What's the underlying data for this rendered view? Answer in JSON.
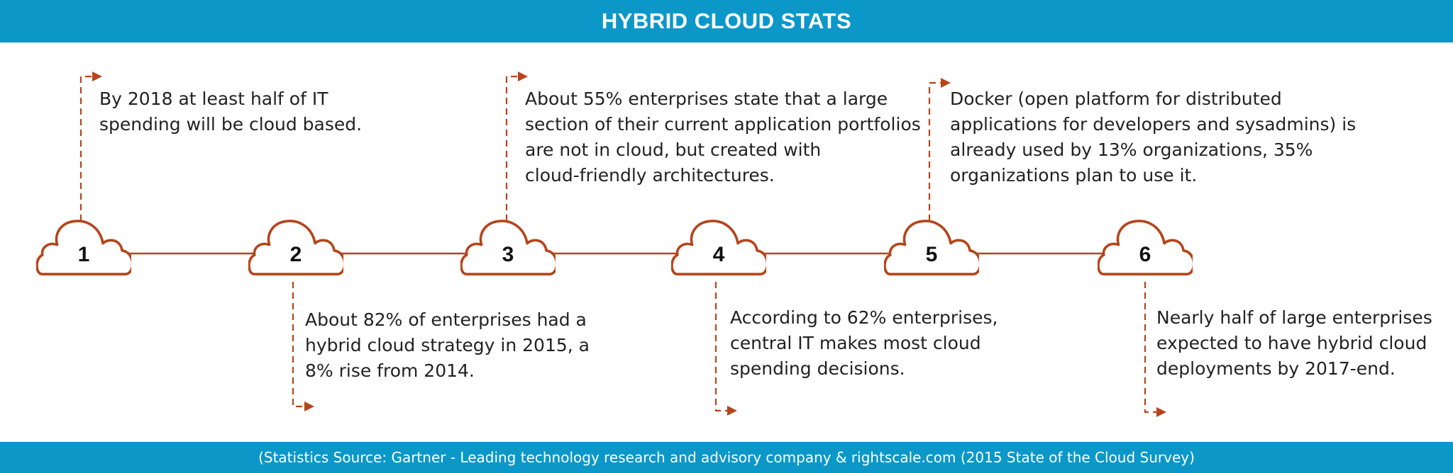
{
  "header": {
    "title": "HYBRID CLOUD STATS"
  },
  "footer": {
    "source": "(Statistics Source: Gartner - Leading technology research and advisory company & rightscale.com (2015 State of the Cloud Survey)"
  },
  "colors": {
    "banner": "#0c97c9",
    "accent": "#b5451b"
  },
  "steps": [
    {
      "number": "1",
      "lines": [
        "By 2018 at least half of IT",
        "spending will be cloud based."
      ]
    },
    {
      "number": "2",
      "lines": [
        "About 82% of enterprises had a",
        "hybrid cloud strategy in 2015, a",
        "8% rise from 2014."
      ]
    },
    {
      "number": "3",
      "lines": [
        "About 55% enterprises state that a large",
        "section of their current application portfolios",
        "are not in cloud, but created with",
        "cloud-friendly architectures."
      ]
    },
    {
      "number": "4",
      "lines": [
        "According to 62% enterprises,",
        "central IT makes most cloud",
        "spending decisions."
      ]
    },
    {
      "number": "5",
      "lines": [
        "Docker (open platform for distributed",
        "applications for developers and sysadmins) is",
        "already used by 13% organizations, 35%",
        "organizations plan to use it."
      ]
    },
    {
      "number": "6",
      "lines": [
        "Nearly half of large enterprises",
        "expected to have hybrid cloud",
        "deployments by 2017-end."
      ]
    }
  ]
}
